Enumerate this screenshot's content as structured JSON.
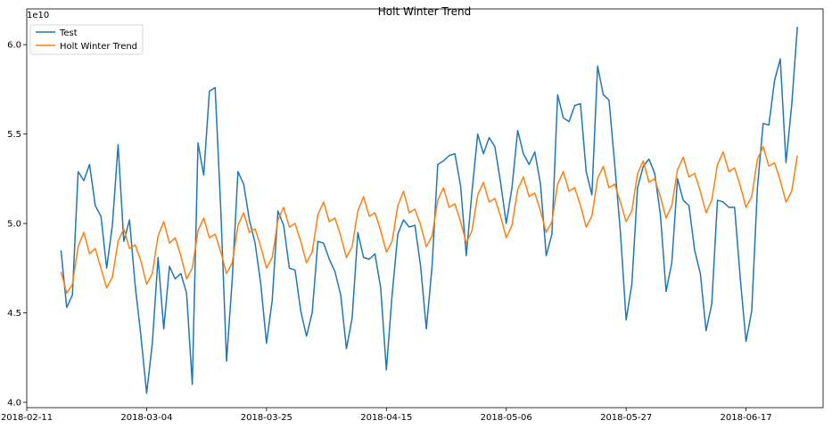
{
  "chart_data": {
    "type": "line",
    "title": "Holt Winter Trend",
    "xlabel": "",
    "ylabel": "",
    "y_offset_label": "1e10",
    "x_ticks": [
      "2018-02-11",
      "2018-03-04",
      "2018-03-25",
      "2018-04-15",
      "2018-05-06",
      "2018-05-27",
      "2018-06-17"
    ],
    "y_ticks": [
      "4.0",
      "4.5",
      "5.0",
      "5.5",
      "6.0"
    ],
    "x_start_date": "2018-02-11",
    "xlim_days": [
      0,
      139.5
    ],
    "ylim": [
      3.97,
      6.2
    ],
    "legend_position": "top-left",
    "grid": false,
    "series": [
      {
        "name": "Test",
        "color": "#1f77b4",
        "start_date": "2018-02-17",
        "values": [
          4.85,
          4.53,
          4.6,
          5.29,
          5.24,
          5.33,
          5.1,
          5.04,
          4.75,
          4.99,
          5.44,
          4.9,
          5.02,
          4.65,
          4.37,
          4.05,
          4.33,
          4.81,
          4.41,
          4.76,
          4.69,
          4.72,
          4.61,
          4.1,
          5.45,
          5.27,
          5.74,
          5.76,
          5.07,
          4.23,
          4.69,
          5.29,
          5.22,
          5.02,
          4.89,
          4.66,
          4.33,
          4.57,
          5.07,
          4.99,
          4.75,
          4.74,
          4.51,
          4.37,
          4.5,
          4.9,
          4.89,
          4.8,
          4.73,
          4.6,
          4.3,
          4.47,
          4.95,
          4.81,
          4.8,
          4.83,
          4.64,
          4.18,
          4.6,
          4.94,
          5.02,
          4.98,
          4.99,
          4.76,
          4.41,
          4.76,
          5.33,
          5.35,
          5.38,
          5.39,
          5.21,
          4.82,
          5.18,
          5.5,
          5.39,
          5.48,
          5.43,
          5.23,
          5.0,
          5.2,
          5.52,
          5.39,
          5.33,
          5.4,
          5.22,
          4.82,
          4.94,
          5.72,
          5.59,
          5.57,
          5.66,
          5.67,
          5.29,
          5.16,
          5.88,
          5.72,
          5.69,
          5.33,
          4.95,
          4.46,
          4.66,
          5.2,
          5.32,
          5.36,
          5.28,
          5.05,
          4.62,
          4.78,
          5.25,
          5.13,
          5.1,
          4.85,
          4.72,
          4.4,
          4.55,
          5.13,
          5.12,
          5.09,
          5.09,
          4.69,
          4.34,
          4.51,
          5.2,
          5.56,
          5.55,
          5.8,
          5.92,
          5.34,
          5.66,
          6.1
        ]
      },
      {
        "name": "Holt Winter Trend",
        "color": "#ff7f0e",
        "start_date": "2018-02-17",
        "values": [
          4.73,
          4.61,
          4.66,
          4.87,
          4.95,
          4.83,
          4.86,
          4.75,
          4.64,
          4.7,
          4.9,
          4.97,
          4.86,
          4.88,
          4.79,
          4.66,
          4.72,
          4.93,
          5.01,
          4.89,
          4.92,
          4.82,
          4.69,
          4.75,
          4.96,
          5.03,
          4.92,
          4.94,
          4.84,
          4.72,
          4.78,
          4.99,
          5.06,
          4.95,
          4.97,
          4.87,
          4.75,
          4.81,
          5.02,
          5.09,
          4.98,
          5.0,
          4.9,
          4.78,
          4.84,
          5.05,
          5.12,
          5.01,
          5.03,
          4.93,
          4.81,
          4.87,
          5.07,
          5.15,
          5.04,
          5.06,
          4.96,
          4.84,
          4.9,
          5.1,
          5.18,
          5.06,
          5.08,
          4.99,
          4.87,
          4.93,
          5.13,
          5.2,
          5.09,
          5.11,
          5.01,
          4.89,
          4.96,
          5.16,
          5.23,
          5.12,
          5.14,
          5.04,
          4.92,
          4.99,
          5.19,
          5.26,
          5.15,
          5.17,
          5.07,
          4.95,
          5.01,
          5.22,
          5.29,
          5.18,
          5.2,
          5.1,
          4.98,
          5.04,
          5.25,
          5.32,
          5.2,
          5.22,
          5.12,
          5.01,
          5.07,
          5.28,
          5.35,
          5.23,
          5.25,
          5.15,
          5.03,
          5.1,
          5.3,
          5.37,
          5.26,
          5.28,
          5.18,
          5.06,
          5.13,
          5.33,
          5.4,
          5.29,
          5.31,
          5.21,
          5.09,
          5.15,
          5.36,
          5.43,
          5.32,
          5.34,
          5.24,
          5.12,
          5.18,
          5.38
        ]
      }
    ]
  }
}
